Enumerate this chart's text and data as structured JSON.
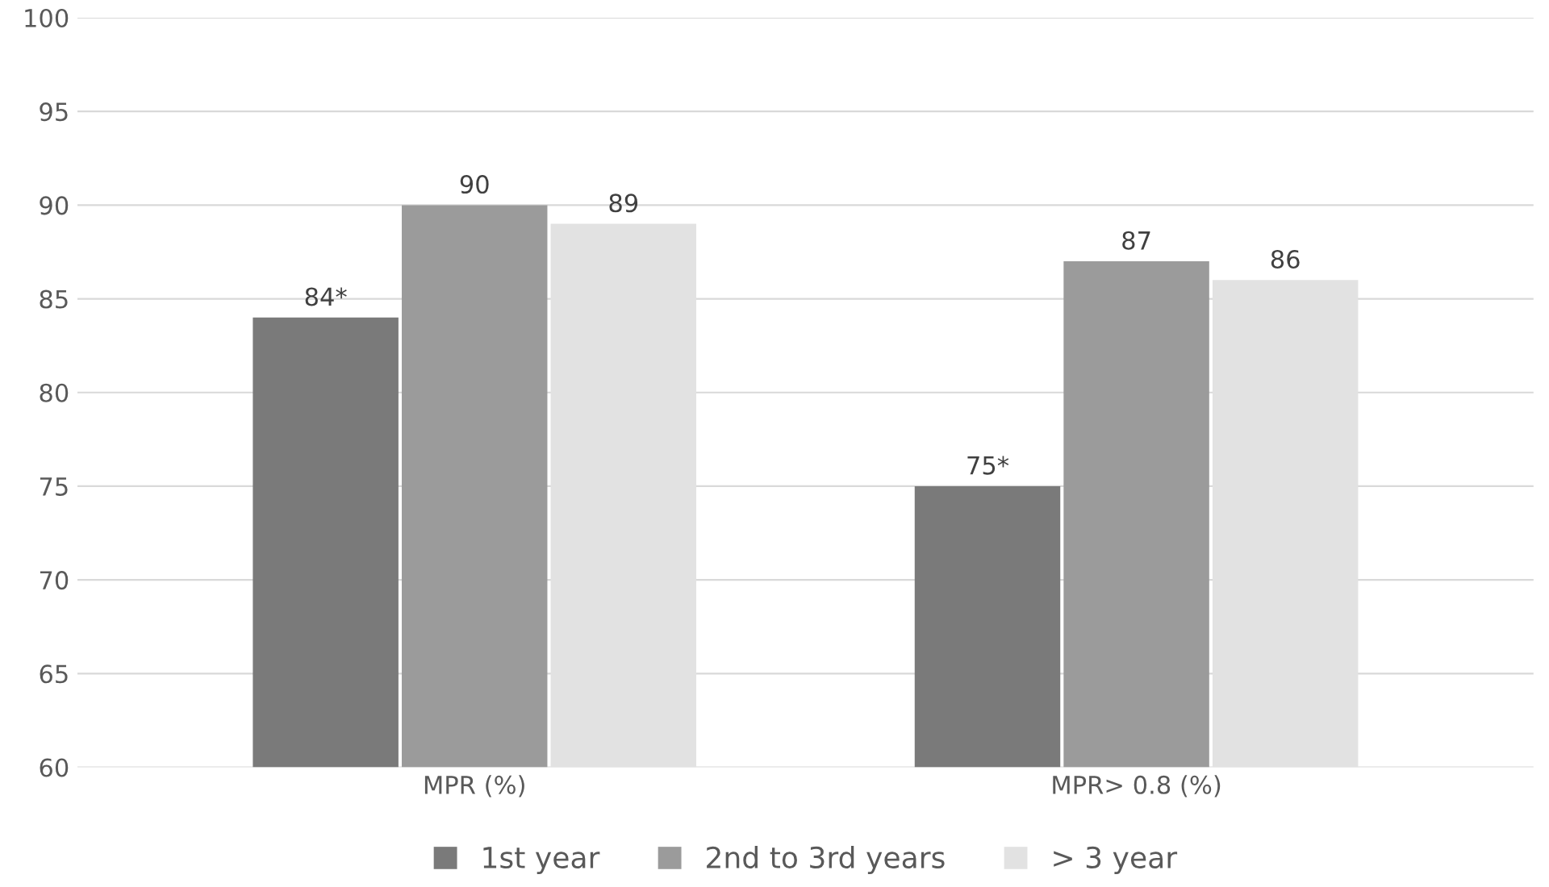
{
  "chart_data": {
    "type": "bar",
    "categories": [
      "MPR (%)",
      "MPR> 0.8 (%)"
    ],
    "series": [
      {
        "name": "1st year",
        "color": "#7a7a7a",
        "values": [
          84,
          75
        ],
        "value_labels": [
          "84*",
          "75*"
        ]
      },
      {
        "name": "2nd to 3rd years",
        "color": "#9b9b9b",
        "values": [
          90,
          87
        ],
        "value_labels": [
          "90",
          "87"
        ]
      },
      {
        "name": "> 3 year",
        "color": "#e2e2e2",
        "values": [
          89,
          86
        ],
        "value_labels": [
          "89",
          "86"
        ]
      }
    ],
    "ylim": [
      60,
      100
    ],
    "yticks": [
      60,
      65,
      70,
      75,
      80,
      85,
      90,
      95,
      100
    ],
    "grid": "y",
    "legend": "bottom"
  }
}
